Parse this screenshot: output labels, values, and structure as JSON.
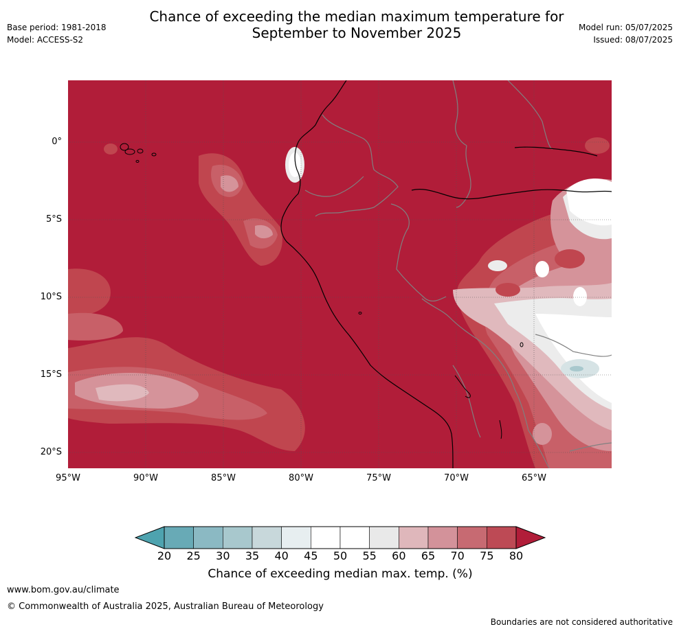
{
  "header": {
    "title_line1": "Chance of exceeding the median maximum temperature for",
    "title_line2": "September to November 2025",
    "base_period": "Base period: 1981-2018",
    "model": "Model: ACCESS-S2",
    "model_run": "Model run: 05/07/2025",
    "issued": "Issued: 08/07/2025"
  },
  "map": {
    "lat_ticks": [
      "0°",
      "5°S",
      "10°S",
      "15°S",
      "20°S"
    ],
    "lon_ticks": [
      "95°W",
      "90°W",
      "85°W",
      "80°W",
      "75°W",
      "70°W",
      "65°W"
    ],
    "colors": {
      "ocean_high": "#b11d39",
      "land_high": "#b11d39",
      "c75": "#c0464f",
      "c70": "#c86068",
      "c65": "#d5939a",
      "c60": "#e0b9bd",
      "c55": "#ececec",
      "c50": "#ffffff",
      "c40": "#d6e3e5",
      "coast": "#000000",
      "border": "#808080"
    }
  },
  "colorbar": {
    "ticks": [
      "20",
      "25",
      "30",
      "35",
      "40",
      "45",
      "50",
      "55",
      "60",
      "65",
      "70",
      "75",
      "80"
    ],
    "colors": [
      "#68aab6",
      "#8bb9c3",
      "#a8c8cd",
      "#c8d8db",
      "#e7eef0",
      "#ffffff",
      "#ffffff",
      "#e9e9e9",
      "#dfb7bb",
      "#d3929a",
      "#c76a72",
      "#bd4a55"
    ],
    "low_extend_color": "#4ea3af",
    "high_extend_color": "#b11d39",
    "label": "Chance of exceeding median max. temp. (%)"
  },
  "footer": {
    "url": "www.bom.gov.au/climate",
    "copyright": "© Commonwealth of Australia 2025, Australian Bureau of Meteorology",
    "disclaimer": "Boundaries are not considered authoritative"
  }
}
